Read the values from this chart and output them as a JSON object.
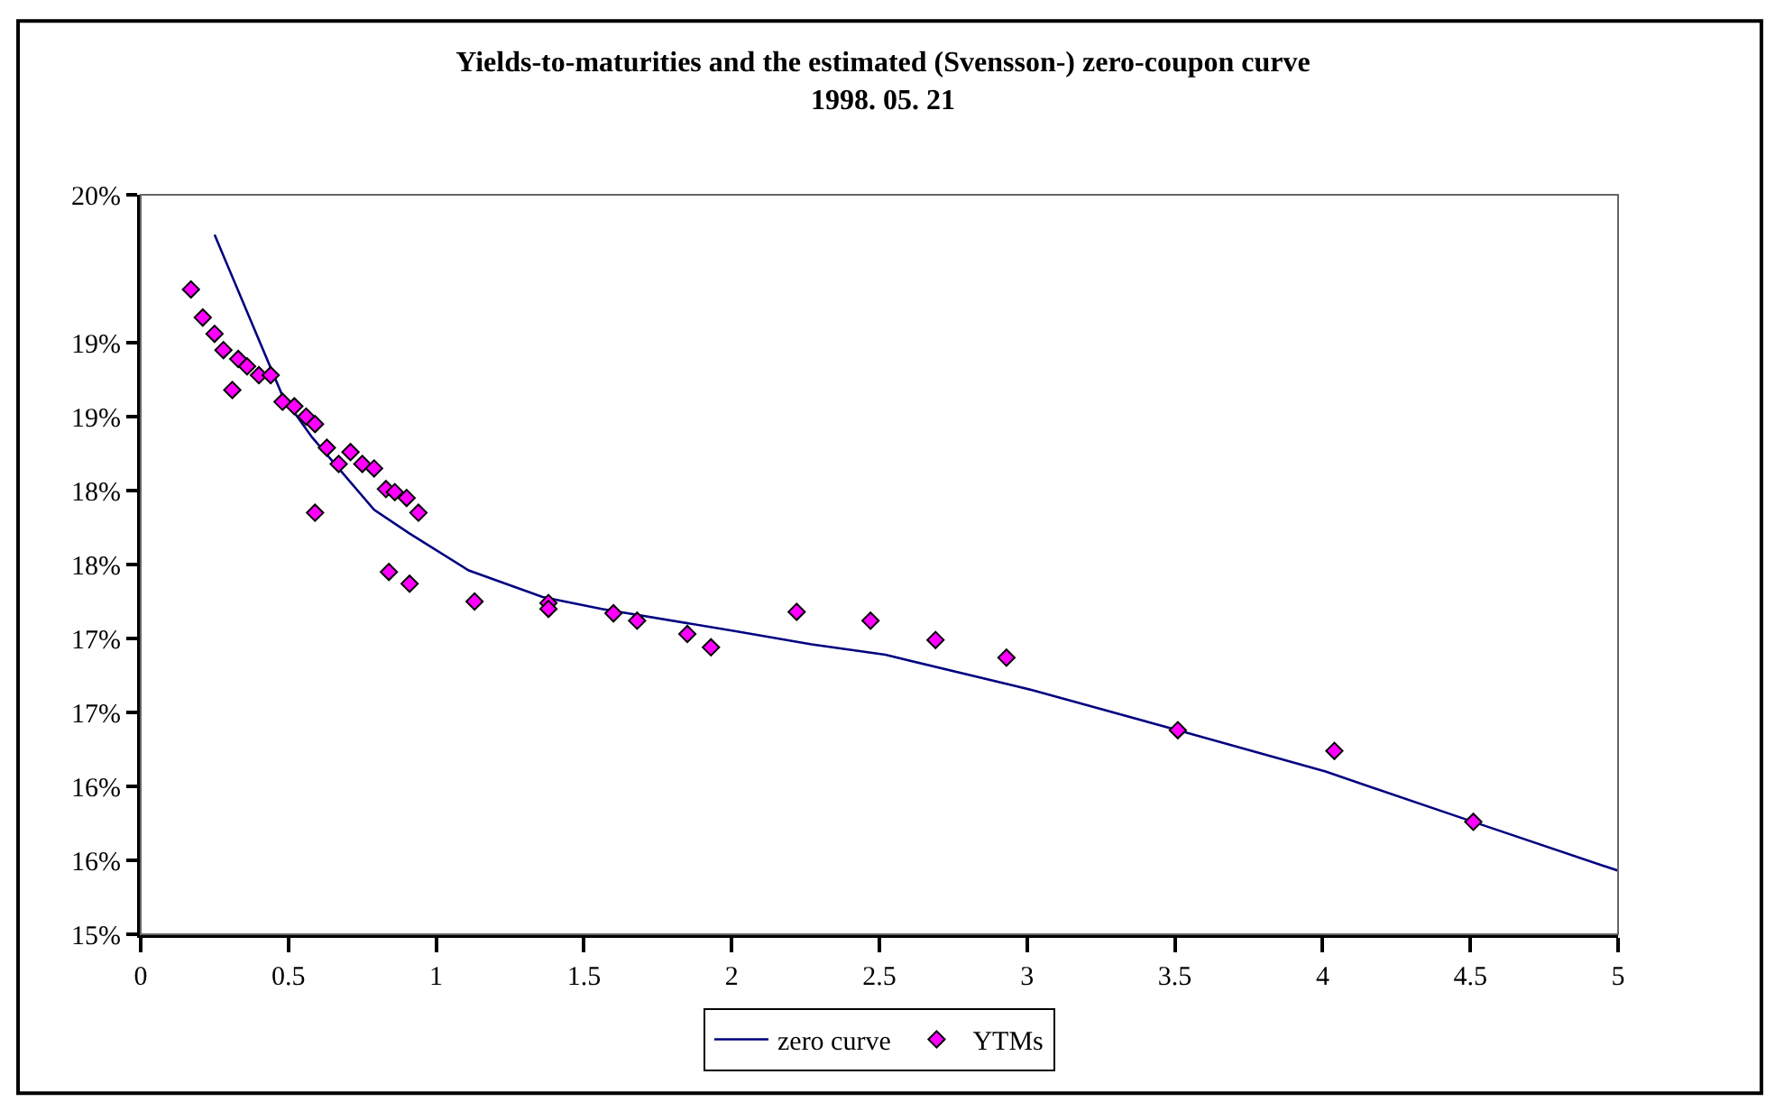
{
  "chart_data": {
    "type": "scatter",
    "title": "Yields-to-maturities and the estimated (Svensson-) zero-coupon curve",
    "subtitle": "1998. 05. 21",
    "xlim": [
      0,
      5
    ],
    "xticks": [
      0,
      0.5,
      1,
      1.5,
      2,
      2.5,
      3,
      3.5,
      4,
      4.5,
      5
    ],
    "ylim": [
      15,
      20
    ],
    "yticks": [
      {
        "value": 15,
        "label": "15%"
      },
      {
        "value": 15.5,
        "label": "16%"
      },
      {
        "value": 16,
        "label": "16%"
      },
      {
        "value": 16.5,
        "label": "17%"
      },
      {
        "value": 17,
        "label": "17%"
      },
      {
        "value": 17.5,
        "label": "18%"
      },
      {
        "value": 18,
        "label": "18%"
      },
      {
        "value": 18.5,
        "label": "19%"
      },
      {
        "value": 19,
        "label": "19%"
      },
      {
        "value": 20,
        "label": "20%"
      }
    ],
    "legend": "bottom",
    "series": [
      {
        "name": "zero curve",
        "type": "line",
        "color": "#000080",
        "marker": "none",
        "line_style": "solid",
        "x": [
          0.25,
          0.48,
          0.58,
          0.79,
          0.91,
          1.11,
          1.36,
          1.56,
          2.01,
          2.27,
          2.52,
          3.02,
          3.51,
          4.01,
          4.51,
          5.0
        ],
        "values": [
          19.73,
          18.64,
          18.36,
          17.87,
          17.71,
          17.46,
          17.28,
          17.2,
          17.05,
          16.96,
          16.89,
          16.65,
          16.38,
          16.1,
          15.76,
          15.43
        ]
      },
      {
        "name": "YTMs",
        "color": "#ff00ff",
        "marker": "diamond",
        "x": [
          0.17,
          0.21,
          0.25,
          0.28,
          0.31,
          0.33,
          0.36,
          0.4,
          0.44,
          0.48,
          0.52,
          0.56,
          0.59,
          0.59,
          0.63,
          0.67,
          0.71,
          0.75,
          0.79,
          0.83,
          0.84,
          0.86,
          0.9,
          0.91,
          0.94,
          1.13,
          1.38,
          1.38,
          1.6,
          1.68,
          1.85,
          1.93,
          2.22,
          2.47,
          2.69,
          2.93,
          3.51,
          4.04,
          4.51
        ],
        "values": [
          19.36,
          19.17,
          19.06,
          18.95,
          18.68,
          18.89,
          18.84,
          18.78,
          18.78,
          18.6,
          18.57,
          18.5,
          18.45,
          17.85,
          18.29,
          18.18,
          18.26,
          18.18,
          18.15,
          18.01,
          17.45,
          17.99,
          17.95,
          17.37,
          17.85,
          17.25,
          17.24,
          17.2,
          17.17,
          17.12,
          17.03,
          16.94,
          17.18,
          17.12,
          16.99,
          16.87,
          16.38,
          16.24,
          15.76
        ]
      }
    ]
  }
}
